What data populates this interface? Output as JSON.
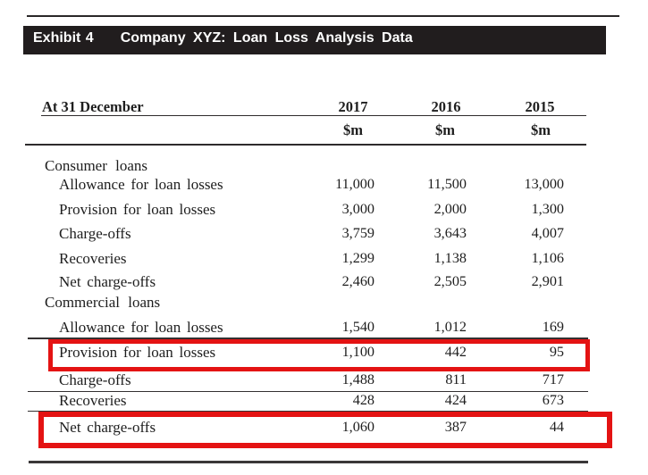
{
  "exhibit": {
    "label": "Exhibit 4",
    "title": "Company XYZ: Loan Loss Analysis Data",
    "bar_color": "#211d1e",
    "text_color": "#ffffff"
  },
  "table": {
    "row_header": "At 31 December",
    "years": [
      "2017",
      "2016",
      "2015"
    ],
    "units": [
      "$m",
      "$m",
      "$m"
    ],
    "rows": [
      {
        "label": "Consumer loans",
        "type": "section",
        "values": [
          "",
          "",
          ""
        ]
      },
      {
        "label": "Allowance for loan losses",
        "type": "item",
        "values": [
          "11,000",
          "11,500",
          "13,000"
        ]
      },
      {
        "label": "Provision for loan losses",
        "type": "item",
        "values": [
          "3,000",
          "2,000",
          "1,300"
        ]
      },
      {
        "label": "Charge-offs",
        "type": "item",
        "values": [
          "3,759",
          "3,643",
          "4,007"
        ]
      },
      {
        "label": "Recoveries",
        "type": "item",
        "values": [
          "1,299",
          "1,138",
          "1,106"
        ]
      },
      {
        "label": "Net charge-offs",
        "type": "item",
        "values": [
          "2,460",
          "2,505",
          "2,901"
        ]
      },
      {
        "label": "Commercial loans",
        "type": "section",
        "values": [
          "",
          "",
          ""
        ]
      },
      {
        "label": "Allowance for loan losses",
        "type": "item",
        "values": [
          "1,540",
          "1,012",
          "169"
        ]
      },
      {
        "label": "Provision for loan losses",
        "type": "item",
        "highlighted": true,
        "values": [
          "1,100",
          "442",
          "95"
        ]
      },
      {
        "label": "Charge-offs",
        "type": "item",
        "values": [
          "1,488",
          "811",
          "717"
        ]
      },
      {
        "label": "Recoveries",
        "type": "item",
        "values": [
          "428",
          "424",
          "673"
        ]
      },
      {
        "label": "Net charge-offs",
        "type": "item",
        "highlighted": true,
        "values": [
          "1,060",
          "387",
          "44"
        ]
      }
    ],
    "highlight_color": "#e41313"
  }
}
